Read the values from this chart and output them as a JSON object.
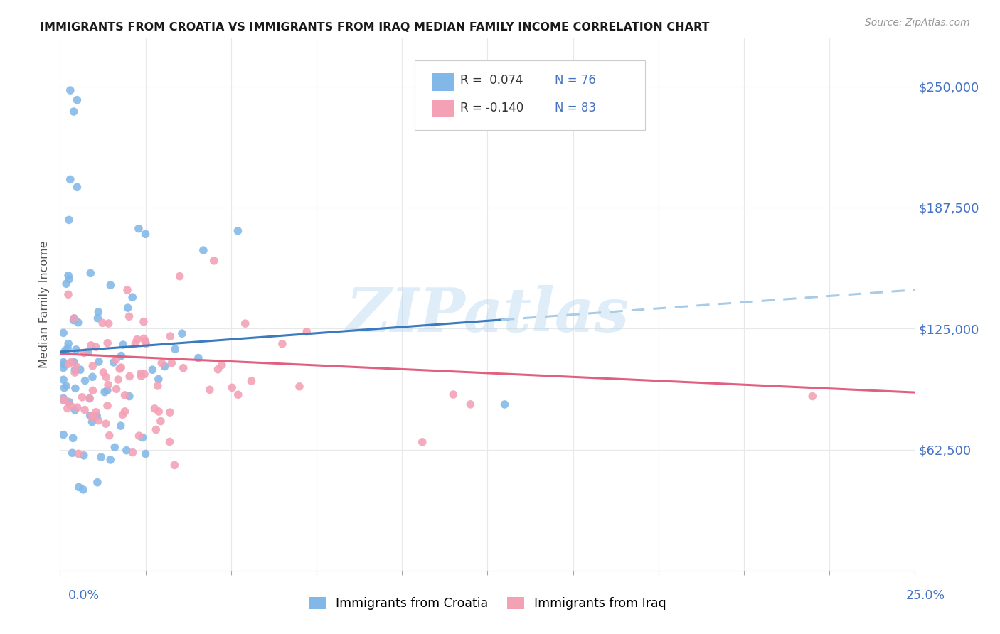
{
  "title": "IMMIGRANTS FROM CROATIA VS IMMIGRANTS FROM IRAQ MEDIAN FAMILY INCOME CORRELATION CHART",
  "source": "Source: ZipAtlas.com",
  "ylabel": "Median Family Income",
  "ytick_labels": [
    "$62,500",
    "$125,000",
    "$187,500",
    "$250,000"
  ],
  "ytick_values": [
    62500,
    125000,
    187500,
    250000
  ],
  "ylim": [
    0,
    275000
  ],
  "xlim": [
    0,
    0.25
  ],
  "croatia_color": "#82b8e8",
  "iraq_color": "#f4a0b5",
  "croatia_line_color": "#3a7abf",
  "iraq_line_color": "#e06080",
  "croatia_line_dash_color": "#a8cce8",
  "watermark": "ZIPatlas",
  "croatia_R": 0.074,
  "croatia_N": 76,
  "iraq_R": -0.14,
  "iraq_N": 83
}
